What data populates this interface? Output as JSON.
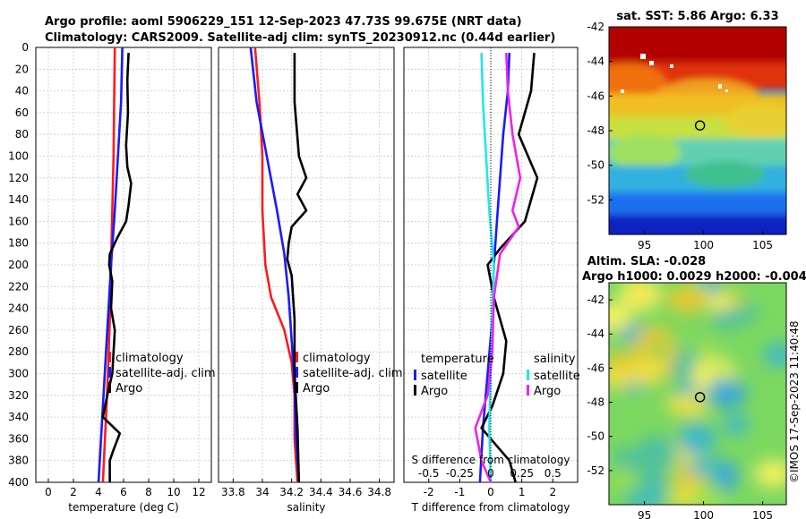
{
  "title": {
    "line1": "Argo profile: aoml 5906229_151 12-Sep-2023 47.73S 99.675E (NRT data)",
    "line2": "Climatology: CARS2009. Satellite-adj clim: synTS_20230912.nc (0.44d earlier)"
  },
  "copyright": "©IMOS 17-Sep-2023 11:40:48",
  "colors": {
    "climatology": "#ff1a1a",
    "satellite": "#1a1aff",
    "argo": "#000000",
    "satellite_s": "#22e6ee",
    "argo_s": "#ee22ee"
  },
  "chart_data": [
    {
      "type": "line",
      "name": "temperature",
      "xlabel": "temperature (deg C)",
      "ylabel": "depth",
      "xlim": [
        -1,
        13
      ],
      "ylim": [
        0,
        400
      ],
      "xticks": [
        "0",
        "2",
        "4",
        "6",
        "8",
        "10",
        "12"
      ],
      "xtick_values": [
        0,
        2,
        4,
        6,
        8,
        10,
        12
      ],
      "yticks": [
        "0",
        "20",
        "40",
        "60",
        "80",
        "100",
        "120",
        "140",
        "160",
        "180",
        "200",
        "220",
        "240",
        "260",
        "280",
        "300",
        "320",
        "340",
        "360",
        "380",
        "400"
      ],
      "legend": {
        "position": "right-middle",
        "entries": [
          "climatology",
          "satellite-adj. clim",
          "Argo"
        ]
      },
      "series": [
        {
          "name": "climatology",
          "color": "#ff1a1a",
          "depth": [
            0,
            50,
            100,
            150,
            200,
            250,
            300,
            340,
            400
          ],
          "values": [
            5.3,
            5.25,
            5.2,
            5.1,
            5.0,
            4.9,
            4.75,
            4.6,
            4.35
          ]
        },
        {
          "name": "satellite-adj. clim",
          "color": "#1a1aff",
          "depth": [
            0,
            50,
            100,
            150,
            200,
            250,
            300,
            340,
            400
          ],
          "values": [
            5.9,
            5.8,
            5.55,
            5.3,
            5.0,
            4.75,
            4.5,
            4.3,
            4.0
          ]
        },
        {
          "name": "Argo",
          "color": "#000000",
          "depth": [
            5,
            30,
            60,
            90,
            110,
            125,
            145,
            160,
            175,
            190,
            200,
            215,
            240,
            260,
            280,
            300,
            320,
            340,
            355,
            370,
            380,
            400
          ],
          "values": [
            6.4,
            6.3,
            6.35,
            6.2,
            6.3,
            6.6,
            6.4,
            6.2,
            5.5,
            4.9,
            4.85,
            5.1,
            5.0,
            5.3,
            5.2,
            5.1,
            4.7,
            4.35,
            5.7,
            5.2,
            4.9,
            4.9
          ]
        }
      ]
    },
    {
      "type": "line",
      "name": "salinity",
      "xlabel": "salinity",
      "ylim": [
        0,
        400
      ],
      "xlim": [
        33.7,
        34.9
      ],
      "xticks": [
        "33.8",
        "34",
        "34.2",
        "34.4",
        "34.6",
        "34.8"
      ],
      "xtick_values": [
        33.8,
        34.0,
        34.2,
        34.4,
        34.6,
        34.8
      ],
      "legend": {
        "position": "right-middle",
        "entries": [
          "climatology",
          "satellite-adj. clim",
          "Argo"
        ]
      },
      "series": [
        {
          "name": "climatology",
          "color": "#ff1a1a",
          "depth": [
            0,
            50,
            100,
            150,
            200,
            230,
            260,
            290,
            320,
            360,
            400
          ],
          "values": [
            33.95,
            33.98,
            34.0,
            34.0,
            34.02,
            34.06,
            34.15,
            34.2,
            34.22,
            34.22,
            34.24
          ]
        },
        {
          "name": "satellite-adj. clim",
          "color": "#1a1aff",
          "depth": [
            0,
            50,
            100,
            150,
            190,
            230,
            270,
            310,
            360,
            400
          ],
          "values": [
            33.92,
            33.96,
            34.03,
            34.1,
            34.15,
            34.18,
            34.2,
            34.22,
            34.23,
            34.25
          ]
        },
        {
          "name": "Argo",
          "color": "#000000",
          "depth": [
            5,
            50,
            100,
            120,
            135,
            150,
            165,
            180,
            195,
            210,
            250,
            300,
            350,
            400
          ],
          "values": [
            34.22,
            34.22,
            34.25,
            34.3,
            34.24,
            34.3,
            34.2,
            34.18,
            34.17,
            34.2,
            34.22,
            34.22,
            34.24,
            34.25
          ]
        }
      ]
    },
    {
      "type": "line",
      "name": "differences",
      "xlabel": "T difference from climatology",
      "xlabel_top": "S difference from climatology",
      "xlim": [
        -2.8,
        2.8
      ],
      "ylim": [
        0,
        400
      ],
      "xticks": [
        "-2",
        "-1",
        "0",
        "1",
        "2"
      ],
      "xtick_values": [
        -2,
        -1,
        0,
        1,
        2
      ],
      "xticks_top": [
        "-0.5",
        "-0.25",
        "0",
        "0.25",
        "0.5"
      ],
      "xtick_top_values": [
        -0.5,
        -0.25,
        0,
        0.25,
        0.5
      ],
      "legend_left": {
        "title": "temperature",
        "entries": [
          "satellite",
          "Argo"
        ]
      },
      "legend_right": {
        "title": "salinity",
        "entries": [
          "satellite",
          "Argo"
        ]
      },
      "series": [
        {
          "name": "T satellite",
          "color": "#1a1aff",
          "depth": [
            5,
            40,
            80,
            120,
            160,
            200,
            250,
            300,
            350,
            400
          ],
          "values": [
            0.6,
            0.55,
            0.4,
            0.3,
            0.2,
            0.1,
            0.05,
            -0.1,
            -0.25,
            -0.35
          ]
        },
        {
          "name": "T Argo",
          "color": "#000000",
          "depth": [
            5,
            40,
            80,
            120,
            160,
            185,
            200,
            230,
            270,
            300,
            330,
            350,
            380,
            400
          ],
          "values": [
            1.4,
            1.3,
            0.9,
            1.5,
            1.1,
            0.3,
            -0.1,
            0.1,
            0.5,
            0.4,
            0.05,
            -0.3,
            0.6,
            0.8
          ]
        },
        {
          "name": "S satellite",
          "color": "#22e6ee",
          "depth": [
            5,
            50,
            100,
            150,
            200,
            250,
            300,
            350,
            400
          ],
          "values": [
            -0.3,
            -0.25,
            -0.15,
            -0.05,
            0.1,
            0.05,
            0.0,
            -0.05,
            0.0
          ]
        },
        {
          "name": "S Argo",
          "color": "#ee22ee",
          "depth": [
            5,
            40,
            80,
            120,
            150,
            165,
            190,
            230,
            280,
            320,
            350,
            380,
            400
          ],
          "values": [
            0.5,
            0.55,
            0.7,
            0.95,
            0.7,
            0.9,
            0.3,
            0.1,
            0.05,
            -0.1,
            -0.5,
            -0.3,
            0.0
          ]
        }
      ]
    },
    {
      "type": "heatmap",
      "name": "sat-sst-map",
      "title": "sat. SST: 5.86  Argo: 6.33",
      "xlim": [
        92,
        107
      ],
      "ylim": [
        -54,
        -42
      ],
      "xticks": [
        "95",
        "100",
        "105"
      ],
      "xtick_values": [
        95,
        100,
        105
      ],
      "yticks": [
        "-42",
        "-44",
        "-46",
        "-48",
        "-50",
        "-52"
      ],
      "ytick_values": [
        -42,
        -44,
        -46,
        -48,
        -50,
        -52
      ],
      "marker": {
        "lon": 99.7,
        "lat": -47.7
      }
    },
    {
      "type": "heatmap",
      "name": "altim-sla-map",
      "title_line1": "Altim. SLA: -0.028",
      "title_line2": "Argo h1000: 0.0029 h2000: -0.004",
      "xlim": [
        92,
        107
      ],
      "ylim": [
        -54,
        -41
      ],
      "xticks": [
        "95",
        "100",
        "105"
      ],
      "xtick_values": [
        95,
        100,
        105
      ],
      "yticks": [
        "-42",
        "-44",
        "-46",
        "-48",
        "-50",
        "-52"
      ],
      "ytick_values": [
        -42,
        -44,
        -46,
        -48,
        -50,
        -52
      ],
      "marker": {
        "lon": 99.7,
        "lat": -47.7
      }
    }
  ]
}
